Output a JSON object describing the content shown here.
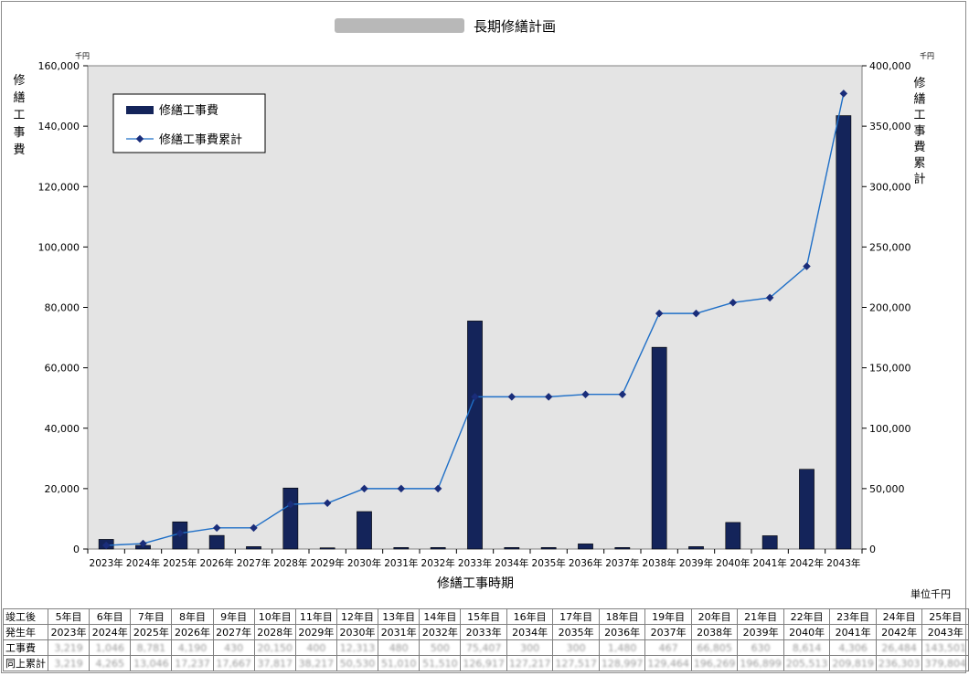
{
  "header": {
    "title_visible": "長期修繕計画",
    "title_redacted_note": ""
  },
  "chart_data": {
    "type": "bar+line",
    "title": "長期修繕計画",
    "xlabel": "修繕工事時期",
    "ylabel_left": "修繕工事費",
    "ylabel_right": "修繕工事費累計",
    "y_unit_left": "千円",
    "y_unit_right": "千円",
    "ylim_left": [
      0,
      160000
    ],
    "ylim_right": [
      0,
      400000
    ],
    "yticks_left": [
      "0",
      "20,000",
      "40,000",
      "60,000",
      "80,000",
      "100,000",
      "120,000",
      "140,000",
      "160,000"
    ],
    "yticks_right": [
      "0",
      "50,000",
      "100,000",
      "150,000",
      "200,000",
      "250,000",
      "300,000",
      "350,000",
      "400,000"
    ],
    "categories": [
      "2023年",
      "2024年",
      "2025年",
      "2026年",
      "2027年",
      "2028年",
      "2029年",
      "2030年",
      "2031年",
      "2032年",
      "2033年",
      "2034年",
      "2035年",
      "2036年",
      "2037年",
      "2038年",
      "2039年",
      "2040年",
      "2041年",
      "2042年",
      "2043年"
    ],
    "series": [
      {
        "name": "修繕工事費",
        "kind": "bar",
        "axis": "left",
        "color": "#14245a",
        "values": [
          3200,
          1200,
          9000,
          4500,
          800,
          20200,
          400,
          12400,
          500,
          500,
          75500,
          500,
          500,
          1700,
          500,
          66800,
          800,
          8800,
          4400,
          26400,
          143500
        ]
      },
      {
        "name": "修繕工事費累計",
        "kind": "line",
        "axis": "right",
        "color": "#1f6fc7",
        "values": [
          3000,
          4500,
          13000,
          17500,
          17500,
          37000,
          38000,
          50000,
          50000,
          50000,
          126000,
          126000,
          126000,
          128000,
          128000,
          195000,
          195000,
          204000,
          208000,
          234000,
          377000
        ]
      }
    ],
    "legend": {
      "position": "top-left",
      "entries": [
        "修繕工事費",
        "修繕工事費累計"
      ]
    },
    "plot_background": "#e4e4e4",
    "grid": false
  },
  "table": {
    "unit_label": "単位千円",
    "rows": [
      {
        "label": "竣工後",
        "cells": [
          "5年目",
          "6年目",
          "7年目",
          "8年目",
          "9年目",
          "10年目",
          "11年目",
          "12年目",
          "13年目",
          "14年目",
          "15年目",
          "16年目",
          "17年目",
          "18年目",
          "19年目",
          "20年目",
          "21年目",
          "22年目",
          "23年目",
          "24年目",
          "25年目"
        ],
        "blurred": false
      },
      {
        "label": "発生年",
        "cells": [
          "2023年",
          "2024年",
          "2025年",
          "2026年",
          "2027年",
          "2028年",
          "2029年",
          "2030年",
          "2031年",
          "2032年",
          "2033年",
          "2034年",
          "2035年",
          "2036年",
          "2037年",
          "2038年",
          "2039年",
          "2040年",
          "2041年",
          "2042年",
          "2043年"
        ],
        "blurred": false
      },
      {
        "label": "工事費",
        "cells": [
          "3,219",
          "1,046",
          "8,781",
          "4,190",
          "430",
          "20,150",
          "400",
          "12,313",
          "480",
          "500",
          "75,407",
          "300",
          "300",
          "1,480",
          "467",
          "66,805",
          "630",
          "8,614",
          "4,306",
          "26,484",
          "143,501"
        ],
        "blurred": true
      },
      {
        "label": "同上累計",
        "cells": [
          "3,219",
          "4,265",
          "13,046",
          "17,237",
          "17,667",
          "37,817",
          "38,217",
          "50,530",
          "51,010",
          "51,510",
          "126,917",
          "127,217",
          "127,517",
          "128,997",
          "129,464",
          "196,269",
          "196,899",
          "205,513",
          "209,819",
          "236,303",
          "379,804"
        ],
        "blurred": true
      }
    ]
  }
}
